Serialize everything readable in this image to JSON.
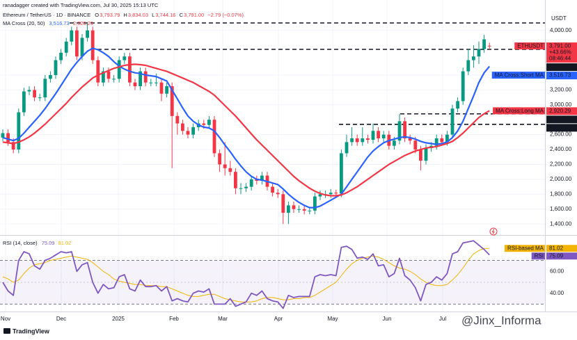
{
  "header": {
    "credit": "ranadagger created with TradingView.com, Jul 30, 2025 15:13 UTC",
    "symbol": "Ethereum / TetherUS · 1D · BINANCE",
    "ohlc": [
      {
        "key": "O",
        "value": "3,793.79"
      },
      {
        "key": "H",
        "value": "3,834.03"
      },
      {
        "key": "L",
        "value": "3,744.16"
      },
      {
        "key": "C",
        "value": "3,791.00"
      }
    ],
    "change": "−2.79 (−0.07%)",
    "ma_title": "MA Cross (20, 50)"
  },
  "chart_data": [
    {
      "type": "candlestick",
      "unit": "USDT",
      "up_color": "#089981",
      "down_color": "#f23645",
      "open": [
        2560,
        2620,
        2500,
        2400,
        2900,
        3180,
        3200,
        3100,
        3100,
        3350,
        3400,
        3600,
        3700,
        3850,
        4000,
        3650,
        3900,
        4000,
        3600,
        3300,
        3450,
        3350,
        3350,
        3600,
        3650,
        3300,
        3250,
        3450,
        3300,
        3300,
        3300,
        3150,
        3250,
        2850,
        2750,
        2650,
        2600,
        2700,
        2750,
        2730,
        2800,
        2350,
        2200,
        2150,
        2100,
        1880,
        1880,
        1900,
        2000,
        1980,
        2050,
        1900,
        1820,
        1800,
        1550,
        1650,
        1600,
        1600,
        1580,
        1580,
        1770,
        1800,
        1800,
        1820,
        1810,
        2350,
        2500,
        2550,
        2500,
        2550,
        2530,
        2650,
        2550,
        2600,
        2450,
        2520,
        2780,
        2550,
        2520,
        2400,
        2250,
        2420,
        2450,
        2550,
        2500,
        2600,
        2950,
        3050,
        3450,
        3600,
        3650,
        3750,
        3793.79
      ],
      "high": [
        2670,
        2670,
        2550,
        2950,
        3230,
        3250,
        3250,
        3150,
        3400,
        3450,
        3650,
        3750,
        3900,
        4050,
        4050,
        3950,
        4100,
        4050,
        3650,
        3500,
        3500,
        3400,
        3650,
        3700,
        3700,
        3350,
        3500,
        3500,
        3350,
        3420,
        3350,
        3300,
        3300,
        2900,
        2800,
        2700,
        2750,
        2800,
        2800,
        2850,
        2850,
        2400,
        2500,
        2250,
        2150,
        1950,
        1950,
        2050,
        2050,
        2100,
        2100,
        1950,
        1870,
        1850,
        1700,
        1700,
        1650,
        1650,
        1630,
        1820,
        1850,
        1850,
        1870,
        1860,
        2400,
        2600,
        2700,
        2600,
        2700,
        2600,
        2750,
        2700,
        2650,
        2650,
        2570,
        2880,
        2830,
        2600,
        2570,
        2450,
        2470,
        2500,
        2600,
        2600,
        2650,
        3000,
        3100,
        3500,
        3750,
        3800,
        3850,
        3940,
        3834.03
      ],
      "low": [
        2510,
        2450,
        2350,
        2350,
        2850,
        3130,
        3050,
        3050,
        3050,
        3300,
        3350,
        3550,
        3650,
        3800,
        3600,
        3600,
        3850,
        3550,
        3250,
        3250,
        3300,
        3300,
        3300,
        3550,
        3250,
        3200,
        3200,
        3250,
        3250,
        3250,
        3050,
        3100,
        2150,
        2600,
        2600,
        2550,
        2550,
        2650,
        2680,
        2680,
        2300,
        2100,
        2050,
        2050,
        1800,
        1800,
        1830,
        1850,
        1930,
        1930,
        1850,
        1770,
        1750,
        1400,
        1400,
        1550,
        1550,
        1530,
        1530,
        1530,
        1720,
        1750,
        1750,
        1760,
        1760,
        2300,
        2450,
        2450,
        2450,
        2480,
        2480,
        2500,
        2500,
        2400,
        2400,
        2470,
        2500,
        2470,
        2350,
        2120,
        2200,
        2370,
        2400,
        2450,
        2450,
        2550,
        2900,
        3000,
        3400,
        3500,
        3550,
        3700,
        3744.16
      ],
      "close": [
        2620,
        2500,
        2400,
        2900,
        3180,
        3200,
        3100,
        3100,
        3350,
        3400,
        3600,
        3700,
        3850,
        4000,
        3650,
        3900,
        4000,
        3600,
        3300,
        3450,
        3350,
        3350,
        3600,
        3650,
        3300,
        3250,
        3450,
        3300,
        3300,
        3300,
        3150,
        3250,
        2850,
        2750,
        2650,
        2600,
        2700,
        2750,
        2730,
        2800,
        2350,
        2200,
        2150,
        2100,
        1880,
        1880,
        1900,
        2000,
        1980,
        2050,
        1900,
        1820,
        1800,
        1550,
        1650,
        1600,
        1600,
        1580,
        1580,
        1770,
        1800,
        1800,
        1820,
        1810,
        2350,
        2500,
        2550,
        2500,
        2550,
        2530,
        2650,
        2550,
        2600,
        2450,
        2520,
        2780,
        2550,
        2520,
        2400,
        2250,
        2420,
        2450,
        2550,
        2500,
        2600,
        2950,
        3050,
        3450,
        3600,
        3650,
        3750,
        3880,
        3791
      ],
      "series": [
        {
          "name": "MA Cross:Short MA",
          "color": "#2962ff",
          "value_label": "3,516.73",
          "values": [
            2560,
            2540,
            2520,
            2550,
            2620,
            2700,
            2780,
            2860,
            2950,
            3050,
            3150,
            3260,
            3370,
            3480,
            3570,
            3650,
            3720,
            3760,
            3740,
            3700,
            3650,
            3580,
            3520,
            3480,
            3450,
            3430,
            3420,
            3400,
            3390,
            3380,
            3350,
            3320,
            3200,
            3080,
            2960,
            2850,
            2780,
            2730,
            2700,
            2690,
            2650,
            2560,
            2460,
            2370,
            2270,
            2180,
            2100,
            2040,
            2000,
            1990,
            1970,
            1950,
            1930,
            1870,
            1800,
            1740,
            1690,
            1650,
            1620,
            1620,
            1640,
            1680,
            1720,
            1760,
            1800,
            1900,
            2000,
            2100,
            2200,
            2300,
            2380,
            2440,
            2490,
            2520,
            2540,
            2560,
            2570,
            2560,
            2540,
            2510,
            2490,
            2480,
            2470,
            2480,
            2500,
            2560,
            2650,
            2780,
            2950,
            3120,
            3300,
            3430,
            3516.73
          ]
        },
        {
          "name": "MA Cross:Long MA",
          "color": "#f23645",
          "value_label": "2,920.29",
          "values": [
            2500,
            2490,
            2480,
            2500,
            2530,
            2570,
            2620,
            2680,
            2740,
            2810,
            2880,
            2950,
            3020,
            3100,
            3170,
            3240,
            3300,
            3360,
            3400,
            3430,
            3460,
            3490,
            3510,
            3530,
            3540,
            3545,
            3540,
            3530,
            3510,
            3490,
            3470,
            3450,
            3420,
            3390,
            3360,
            3330,
            3300,
            3260,
            3220,
            3180,
            3130,
            3060,
            2990,
            2920,
            2850,
            2770,
            2690,
            2610,
            2530,
            2460,
            2390,
            2320,
            2250,
            2180,
            2110,
            2040,
            1980,
            1930,
            1880,
            1840,
            1810,
            1790,
            1780,
            1780,
            1790,
            1820,
            1860,
            1900,
            1950,
            2000,
            2050,
            2100,
            2150,
            2200,
            2240,
            2280,
            2320,
            2350,
            2380,
            2400,
            2420,
            2430,
            2440,
            2460,
            2480,
            2510,
            2560,
            2620,
            2690,
            2760,
            2830,
            2880,
            2920.29
          ]
        }
      ],
      "ylim": [
        1280,
        4240
      ],
      "yticks": [
        {
          "value": 4000,
          "label": "4,000.00"
        },
        {
          "value": 3400,
          "label": "3,400.00"
        },
        {
          "value": 3200,
          "label": "3,200.00"
        },
        {
          "value": 3000,
          "label": "3,000.00"
        },
        {
          "value": 2600,
          "label": "2,600.00"
        },
        {
          "value": 2400,
          "label": "2,400.00"
        },
        {
          "value": 2200,
          "label": "2,200.00"
        },
        {
          "value": 2000,
          "label": "2,000.00"
        },
        {
          "value": 1800,
          "label": "1,800.00"
        },
        {
          "value": 1600,
          "label": "1,600.00"
        },
        {
          "value": 1400,
          "label": "1,400.00"
        }
      ],
      "xticks": [
        "Nov",
        "Dec",
        "2025",
        "Feb",
        "Mar",
        "Apr",
        "May",
        "Jun",
        "Jul"
      ],
      "levels": [
        {
          "value": 4100
        },
        {
          "value": 3745,
          "label": "3,745.00"
        },
        {
          "value": 2879,
          "label": "2,879.00"
        },
        {
          "value": 2738.5,
          "label": "2,738.50"
        }
      ],
      "last": {
        "symbol": "ETHUSDT",
        "price": "3,791.00",
        "change": "+43.66%",
        "countdown": "08:46:44"
      },
      "grid": true
    },
    {
      "type": "line",
      "title": "RSI (14, close)",
      "series": [
        {
          "name": "RSI",
          "color": "#7e57c2",
          "value_label": "75.09",
          "values": [
            50,
            42,
            38,
            70,
            78,
            76,
            65,
            62,
            70,
            72,
            75,
            78,
            77,
            78,
            60,
            66,
            68,
            50,
            40,
            48,
            44,
            45,
            55,
            57,
            44,
            42,
            52,
            46,
            46,
            47,
            42,
            46,
            33,
            35,
            33,
            32,
            40,
            42,
            41,
            44,
            30,
            30,
            30,
            35,
            28,
            30,
            32,
            40,
            38,
            42,
            35,
            33,
            32,
            26,
            38,
            36,
            37,
            37,
            37,
            55,
            57,
            56,
            57,
            56,
            82,
            83,
            80,
            72,
            73,
            71,
            76,
            65,
            66,
            55,
            58,
            72,
            56,
            52,
            45,
            33,
            48,
            50,
            55,
            52,
            58,
            76,
            78,
            86,
            87,
            88,
            84,
            80,
            75.09
          ]
        },
        {
          "name": "RSI-based MA",
          "color": "#f2b400",
          "value_label": "81.02",
          "values": [
            55,
            53,
            50,
            52,
            58,
            63,
            66,
            67,
            68,
            70,
            71,
            72,
            73,
            74,
            73,
            72,
            71,
            68,
            64,
            60,
            57,
            53,
            51,
            50,
            49,
            48,
            48,
            47,
            47,
            47,
            46,
            46,
            44,
            42,
            40,
            38,
            37,
            37,
            38,
            39,
            39,
            37,
            35,
            34,
            33,
            32,
            32,
            32,
            33,
            35,
            36,
            36,
            35,
            34,
            34,
            35,
            35,
            36,
            36,
            38,
            41,
            44,
            47,
            50,
            56,
            62,
            67,
            70,
            72,
            73,
            74,
            73,
            71,
            68,
            65,
            63,
            62,
            60,
            57,
            53,
            50,
            48,
            47,
            47,
            48,
            52,
            57,
            63,
            70,
            76,
            79,
            81,
            81.02
          ]
        }
      ],
      "ylim": [
        24.5,
        92
      ],
      "yticks": [
        {
          "value": 40,
          "label": "40.00"
        },
        {
          "value": 60,
          "label": "60.00"
        }
      ],
      "bands": [
        30,
        70
      ],
      "midline": 50
    }
  ],
  "footer": {
    "logo": "TradingView",
    "watermark": "@Jinx_Informa"
  }
}
